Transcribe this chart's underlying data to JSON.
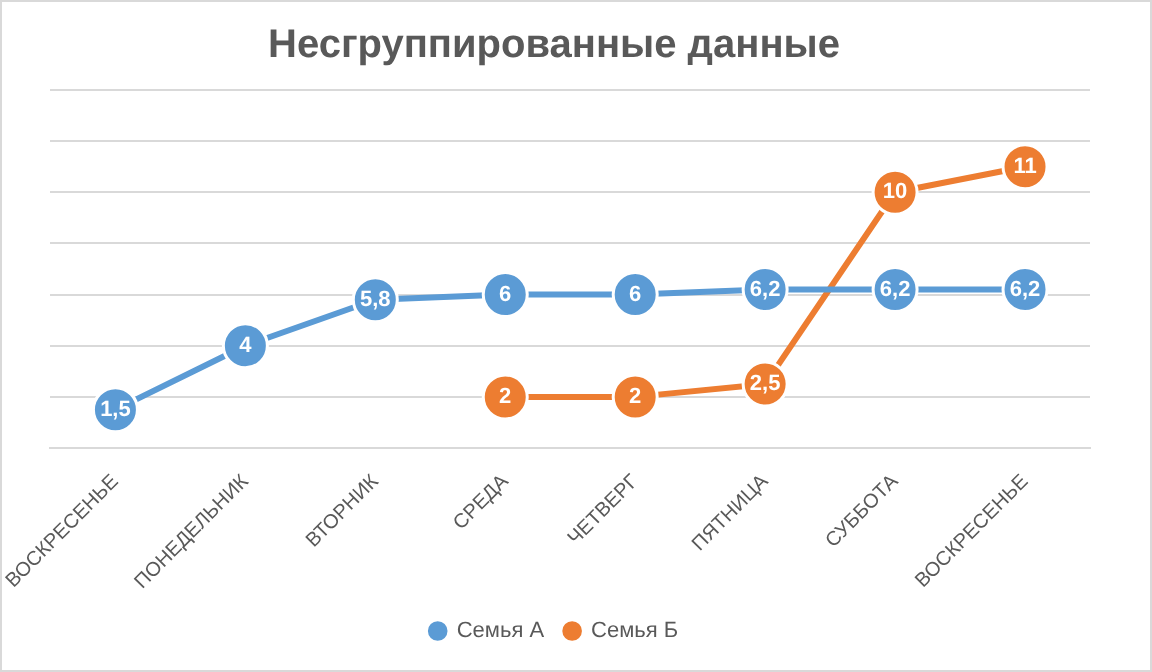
{
  "chart_data": {
    "type": "line",
    "title": "Несгруппированные данные",
    "categories": [
      "ВОСКРЕСЕНЬЕ",
      "ПОНЕДЕЛЬНИК",
      "ВТОРНИК",
      "СРЕДА",
      "ЧЕТВЕРГ",
      "ПЯТНИЦА",
      "СУББОТА",
      "ВОСКРЕСЕНЬЕ"
    ],
    "series": [
      {
        "name": "Семья А",
        "color": "#5b9bd5",
        "values": [
          1.5,
          4,
          5.8,
          6,
          6,
          6.2,
          6.2,
          6.2
        ],
        "value_labels": [
          "1,5",
          "4",
          "5,8",
          "6",
          "6",
          "6,2",
          "6,2",
          "6,2"
        ]
      },
      {
        "name": "Семья Б",
        "color": "#ed7d31",
        "values": [
          null,
          null,
          null,
          2,
          2,
          2.5,
          10,
          11
        ],
        "value_labels": [
          null,
          null,
          null,
          "2",
          "2",
          "2,5",
          "10",
          "11"
        ]
      }
    ],
    "ylim": [
      0,
      14
    ],
    "yticks": [
      {
        "value": 0,
        "label": null
      },
      {
        "value": 2,
        "label": null
      },
      {
        "value": 4,
        "label": null
      },
      {
        "value": 6,
        "label": null
      },
      {
        "value": 8,
        "label": null
      },
      {
        "value": 10,
        "label": null
      },
      {
        "value": 12,
        "label": null
      },
      {
        "value": 14,
        "label": null
      }
    ],
    "tick_labels": "x",
    "grid": "y",
    "legend": "bottom",
    "marker": "circle",
    "line_style": "solid"
  }
}
